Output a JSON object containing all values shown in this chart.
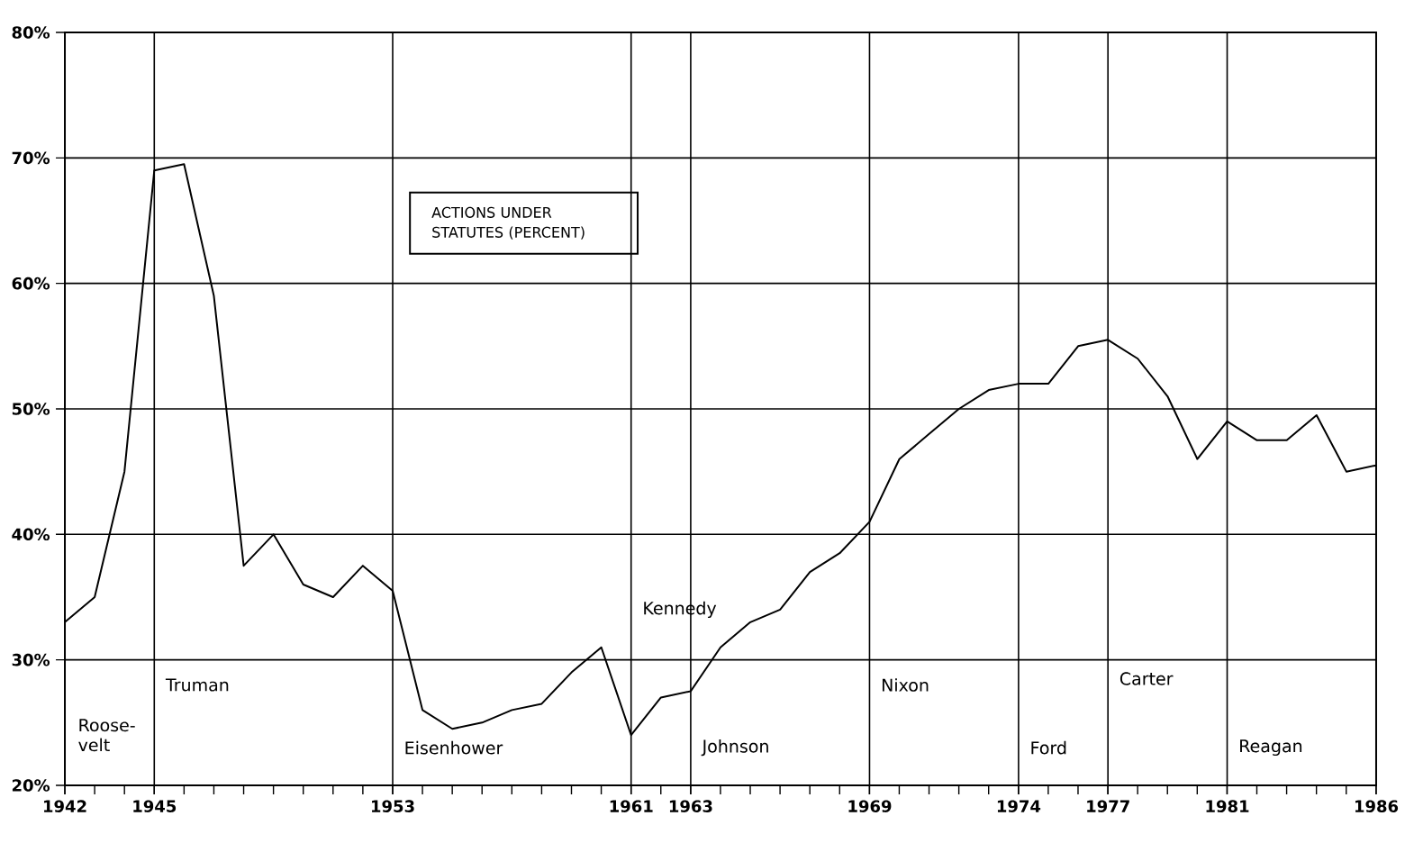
{
  "chart_data": {
    "type": "line",
    "annotations": [
      "ACTIONS UNDER STATUTES (PERCENT)",
      "Roose-velt"
    ],
    "x": [
      1942,
      1943,
      1944,
      1945,
      1946,
      1947,
      1948,
      1949,
      1950,
      1951,
      1952,
      1953,
      1954,
      1955,
      1956,
      1957,
      1958,
      1959,
      1960,
      1961,
      1962,
      1963,
      1964,
      1965,
      1966,
      1967,
      1968,
      1969,
      1970,
      1971,
      1972,
      1973,
      1974,
      1975,
      1976,
      1977,
      1978,
      1979,
      1980,
      1981,
      1982,
      1983,
      1984,
      1985,
      1986
    ],
    "series": [
      {
        "color": "#000000",
        "values": [
          33,
          35,
          45,
          69,
          69.5,
          59,
          37.5,
          40,
          36,
          35,
          37.5,
          35.5,
          26,
          24.5,
          25,
          26,
          26.5,
          29,
          31,
          24,
          27,
          27.5,
          31,
          33,
          34,
          37,
          38.5,
          41,
          46,
          48,
          50,
          51.5,
          52,
          52,
          55,
          55.5,
          54,
          51,
          46,
          49,
          47.5,
          47.5,
          49.5,
          45,
          45.5
        ]
      }
    ],
    "xlim": [
      1942,
      1986
    ],
    "ylim": [
      20,
      80
    ],
    "xticks": [
      1942,
      1945,
      1953,
      1961,
      1963,
      1969,
      1974,
      1977,
      1981,
      1986
    ],
    "yticks": [
      {
        "value": 20,
        "label": "20%"
      },
      {
        "value": 30,
        "label": "30%"
      },
      {
        "value": 40,
        "label": "40%"
      },
      {
        "value": 50,
        "label": "50%"
      },
      {
        "value": 60,
        "label": "60%"
      },
      {
        "value": 70,
        "label": "70%"
      },
      {
        "value": 80,
        "label": "80%"
      }
    ],
    "grid": "y",
    "marker": "none",
    "line_style": "solid",
    "ref_lines": [
      {
        "axis": "x",
        "value": 1945,
        "label": "Truman"
      },
      {
        "axis": "x",
        "value": 1953,
        "label": "Eisenhower"
      },
      {
        "axis": "x",
        "value": 1961,
        "label": "Kennedy"
      },
      {
        "axis": "x",
        "value": 1963,
        "label": "Johnson"
      },
      {
        "axis": "x",
        "value": 1969,
        "label": "Nixon"
      },
      {
        "axis": "x",
        "value": 1974,
        "label": "Ford"
      },
      {
        "axis": "x",
        "value": 1977,
        "label": "Carter"
      },
      {
        "axis": "x",
        "value": 1981,
        "label": "Reagan"
      }
    ]
  }
}
